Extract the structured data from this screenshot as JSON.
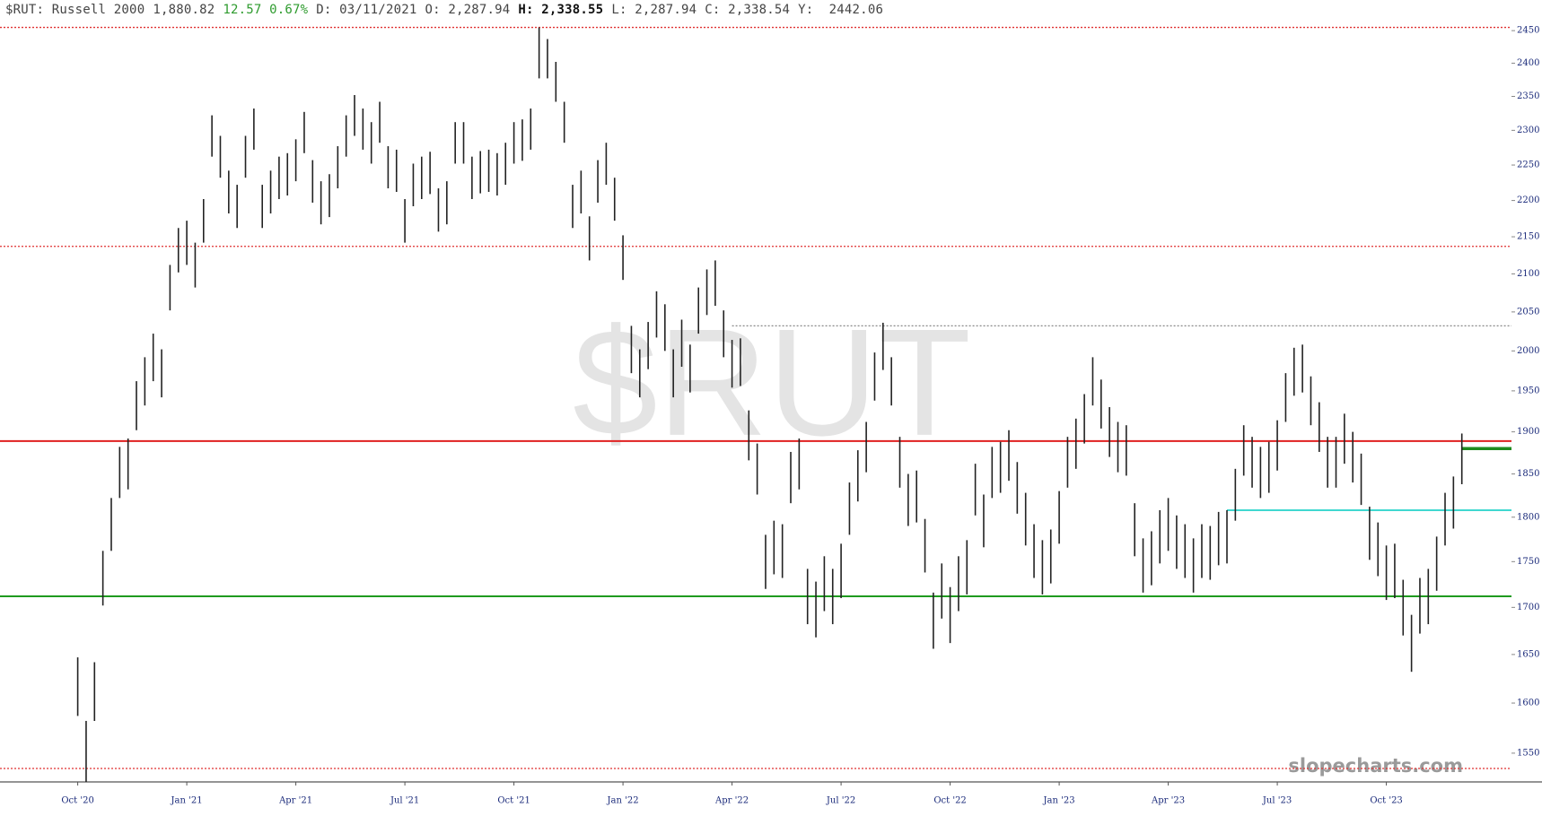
{
  "header": {
    "symbol": "$RUT: Russell 2000",
    "last": "1,880.82",
    "change": "12.57 0.67%",
    "date": "D: 03/11/2021",
    "open": "O: 2,287.94",
    "high": "H: 2,338.55",
    "low": "L: 2,287.94",
    "close": "C: 2,338.54",
    "y": "Y:  2442.06"
  },
  "chart_data": {
    "type": "ohlc",
    "watermark": "$RUT",
    "credit": "slopecharts.com",
    "log_scale": true,
    "color": "#222222",
    "ylim": [
      1522,
      2460
    ],
    "yticks": [
      1550,
      1600,
      1650,
      1700,
      1750,
      1800,
      1850,
      1900,
      1950,
      2000,
      2050,
      2100,
      2150,
      2200,
      2250,
      2300,
      2350,
      2400,
      2450
    ],
    "categories": [
      "Oct '20",
      null,
      null,
      null,
      null,
      null,
      null,
      null,
      null,
      null,
      null,
      null,
      null,
      "Jan '21",
      null,
      null,
      null,
      null,
      null,
      null,
      null,
      null,
      null,
      null,
      null,
      null,
      "Apr '21",
      null,
      null,
      null,
      null,
      null,
      null,
      null,
      null,
      null,
      null,
      null,
      null,
      "Jul '21",
      null,
      null,
      null,
      null,
      null,
      null,
      null,
      null,
      null,
      null,
      null,
      null,
      "Oct '21",
      null,
      null,
      null,
      null,
      null,
      null,
      null,
      null,
      null,
      null,
      null,
      null,
      "Jan '22",
      null,
      null,
      null,
      null,
      null,
      null,
      null,
      null,
      null,
      null,
      null,
      null,
      "Apr '22",
      null,
      null,
      null,
      null,
      null,
      null,
      null,
      null,
      null,
      null,
      null,
      null,
      "Jul '22",
      null,
      null,
      null,
      null,
      null,
      null,
      null,
      null,
      null,
      null,
      null,
      null,
      "Oct '22",
      null,
      null,
      null,
      null,
      null,
      null,
      null,
      null,
      null,
      null,
      null,
      null,
      "Jan '23",
      null,
      null,
      null,
      null,
      null,
      null,
      null,
      null,
      null,
      null,
      null,
      null,
      "Apr '23",
      null,
      null,
      null,
      null,
      null,
      null,
      null,
      null,
      null,
      null,
      null,
      null,
      "Jul '23",
      null,
      null,
      null,
      null,
      null,
      null,
      null,
      null,
      null,
      null,
      null,
      null,
      "Oct '23",
      null,
      null,
      null,
      null,
      null,
      null,
      null,
      null,
      null
    ],
    "low": [
      1587,
      1522,
      1582,
      1702,
      1762,
      1822,
      1832,
      1902,
      1932,
      1962,
      1942,
      2052,
      2102,
      2112,
      2082,
      2142,
      2262,
      2232,
      2182,
      2162,
      2232,
      2272,
      2162,
      2182,
      2202,
      2207,
      2227,
      2267,
      2197,
      2167,
      2177,
      2217,
      2262,
      2292,
      2272,
      2252,
      2282,
      2217,
      2212,
      2142,
      2192,
      2202,
      2209,
      2157,
      2167,
      2252,
      2252,
      2202,
      2210,
      2212,
      2207,
      2222,
      2252,
      2256,
      2272,
      2377,
      2377,
      2342,
      2282,
      2162,
      2182,
      2118,
      2197,
      2222,
      2172,
      2092,
      1972,
      1942,
      1977,
      2017,
      2000,
      1942,
      1980,
      1948,
      2022,
      2046,
      2058,
      1992,
      1954,
      1956,
      1866,
      1826,
      1720,
      1736,
      1732,
      1816,
      1832,
      1682,
      1668,
      1696,
      1682,
      1710,
      1780,
      1818,
      1852,
      1938,
      1976,
      1932,
      1834,
      1790,
      1794,
      1738,
      1656,
      1688,
      1662,
      1696,
      1714,
      1802,
      1766,
      1822,
      1828,
      1842,
      1804,
      1768,
      1732,
      1714,
      1726,
      1770,
      1834,
      1856,
      1886,
      1932,
      1904,
      1870,
      1852,
      1848,
      1756,
      1716,
      1724,
      1748,
      1762,
      1742,
      1732,
      1716,
      1732,
      1730,
      1746,
      1748,
      1796,
      1848,
      1834,
      1822,
      1828,
      1854,
      1912,
      1944,
      1948,
      1908,
      1876,
      1834,
      1834,
      1862,
      1840,
      1814,
      1752,
      1734,
      1708,
      1710,
      1670,
      1632,
      1672,
      1682,
      1718,
      1768,
      1787,
      1838
    ],
    "high": [
      1647,
      1582,
      1642,
      1762,
      1822,
      1882,
      1892,
      1962,
      1992,
      2022,
      2002,
      2112,
      2162,
      2172,
      2142,
      2202,
      2322,
      2292,
      2242,
      2222,
      2292,
      2332,
      2222,
      2242,
      2262,
      2267,
      2287,
      2327,
      2257,
      2227,
      2237,
      2277,
      2322,
      2352,
      2332,
      2312,
      2342,
      2277,
      2272,
      2202,
      2252,
      2262,
      2269,
      2217,
      2227,
      2312,
      2312,
      2262,
      2270,
      2272,
      2267,
      2282,
      2312,
      2316,
      2332,
      2455,
      2437,
      2402,
      2342,
      2222,
      2242,
      2178,
      2257,
      2282,
      2232,
      2152,
      2032,
      2002,
      2037,
      2077,
      2060,
      2002,
      2040,
      2008,
      2082,
      2106,
      2118,
      2052,
      2014,
      2016,
      1926,
      1886,
      1780,
      1796,
      1792,
      1876,
      1892,
      1742,
      1728,
      1756,
      1742,
      1770,
      1840,
      1878,
      1912,
      1998,
      2036,
      1992,
      1894,
      1850,
      1854,
      1798,
      1716,
      1748,
      1722,
      1756,
      1774,
      1862,
      1826,
      1882,
      1888,
      1902,
      1864,
      1828,
      1792,
      1774,
      1786,
      1830,
      1894,
      1916,
      1946,
      1992,
      1964,
      1930,
      1912,
      1908,
      1816,
      1776,
      1784,
      1808,
      1822,
      1802,
      1792,
      1776,
      1792,
      1790,
      1806,
      1808,
      1856,
      1908,
      1894,
      1882,
      1888,
      1914,
      1972,
      2004,
      2008,
      1968,
      1936,
      1894,
      1894,
      1922,
      1900,
      1874,
      1812,
      1794,
      1768,
      1770,
      1730,
      1692,
      1732,
      1742,
      1778,
      1828,
      1847,
      1898
    ],
    "levels": [
      {
        "value": 2455,
        "color": "#e03030",
        "style": "dotted"
      },
      {
        "value": 2137,
        "color": "#e03030",
        "style": "dotted"
      },
      {
        "value": 1535,
        "color": "#e03030",
        "style": "dotted"
      },
      {
        "value": 2032,
        "color": "#888888",
        "style": "dotted"
      },
      {
        "value": 1889,
        "color": "#e02020",
        "style": "solid"
      },
      {
        "value": 1712,
        "color": "#1f9a1f",
        "style": "solid"
      },
      {
        "value": 1808,
        "color": "#40d8d0",
        "style": "solid"
      },
      {
        "value": 1880,
        "color": "#1f8a1f",
        "style": "thick"
      }
    ]
  }
}
